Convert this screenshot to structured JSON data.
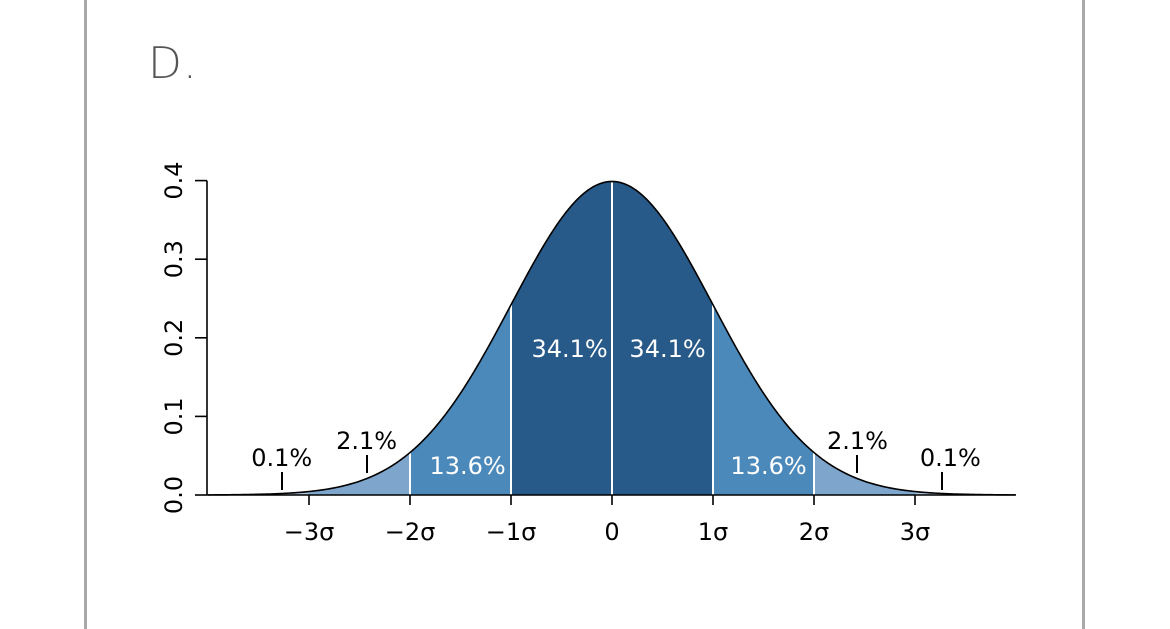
{
  "option": {
    "label": "D."
  },
  "chart_data": {
    "type": "area",
    "title": "",
    "xlabel": "",
    "ylabel": "",
    "xlim": [
      -4.0,
      4.0
    ],
    "ylim": [
      0,
      0.4
    ],
    "distribution": "normal",
    "mean": 0,
    "sd": 1,
    "grid": false,
    "x_ticks": [
      {
        "value": -3,
        "label": "−3σ"
      },
      {
        "value": -2,
        "label": "−2σ"
      },
      {
        "value": -1,
        "label": "−1σ"
      },
      {
        "value": 0,
        "label": "0"
      },
      {
        "value": 1,
        "label": "1σ"
      },
      {
        "value": 2,
        "label": "2σ"
      },
      {
        "value": 3,
        "label": "3σ"
      }
    ],
    "y_ticks": [
      {
        "value": 0.0,
        "label": "0.0"
      },
      {
        "value": 0.1,
        "label": "0.1"
      },
      {
        "value": 0.2,
        "label": "0.2"
      },
      {
        "value": 0.3,
        "label": "0.3"
      },
      {
        "value": 0.4,
        "label": "0.4"
      }
    ],
    "regions": [
      {
        "from": -4,
        "to": -3,
        "percent": "0.1%",
        "color": "#a9c1da"
      },
      {
        "from": -3,
        "to": -2,
        "percent": "2.1%",
        "color": "#7ea6cc"
      },
      {
        "from": -2,
        "to": -1,
        "percent": "13.6%",
        "color": "#4b89bb"
      },
      {
        "from": -1,
        "to": 0,
        "percent": "34.1%",
        "color": "#285a89"
      },
      {
        "from": 0,
        "to": 1,
        "percent": "34.1%",
        "color": "#285a89"
      },
      {
        "from": 1,
        "to": 2,
        "percent": "13.6%",
        "color": "#4b89bb"
      },
      {
        "from": 2,
        "to": 3,
        "percent": "2.1%",
        "color": "#7ea6cc"
      },
      {
        "from": 3,
        "to": 4,
        "percent": "0.1%",
        "color": "#a9c1da"
      }
    ]
  }
}
